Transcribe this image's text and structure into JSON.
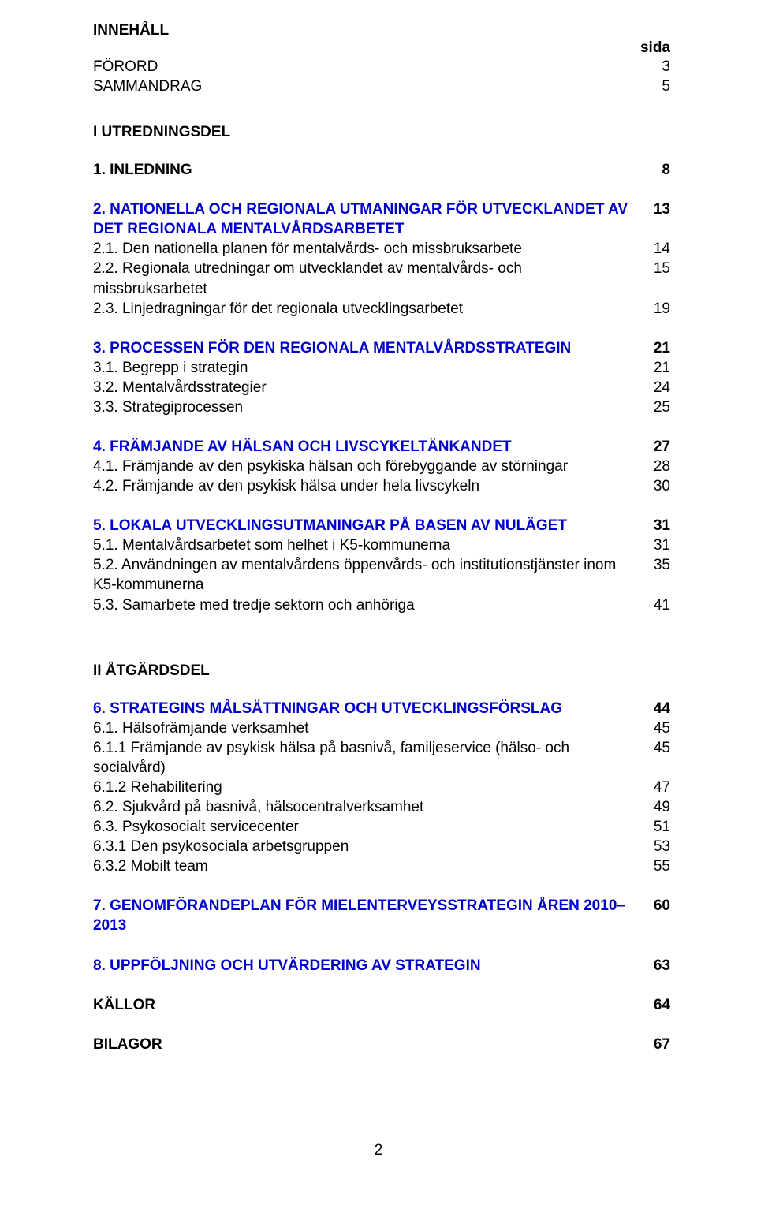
{
  "text_color": "#000000",
  "link_color": "#0000cc",
  "background": "#ffffff",
  "font_size_pt": 14,
  "heading": "INNEHÅLL",
  "sida": "sida",
  "top": [
    {
      "label": "FÖRORD",
      "page": "3"
    },
    {
      "label": "SAMMANDRAG",
      "page": "5"
    }
  ],
  "part1": "I UTREDNINGSDEL",
  "s1": [
    {
      "label": "1. INLEDNING",
      "page": "8",
      "bold": true
    }
  ],
  "s2": [
    {
      "label": "2. NATIONELLA OCH REGIONALA UTMANINGAR FÖR UTVECKLANDET AV DET REGIONALA MENTALVÅRDSARBETET",
      "page": "13",
      "bold": true,
      "blue": true
    },
    {
      "label": "2.1. Den nationella planen för mentalvårds- och missbruksarbete",
      "page": "14"
    },
    {
      "label": "2.2. Regionala utredningar om utvecklandet av mentalvårds- och missbruksarbetet",
      "page": "15"
    },
    {
      "label": "2.3. Linjedragningar för det regionala utvecklingsarbetet",
      "page": "19"
    }
  ],
  "s3": [
    {
      "label": "3. PROCESSEN FÖR DEN REGIONALA MENTALVÅRDSSTRATEGIN",
      "page": "21",
      "bold": true,
      "blue": true
    },
    {
      "label": "3.1. Begrepp i strategin",
      "page": "21"
    },
    {
      "label": "3.2. Mentalvårdsstrategier",
      "page": "24"
    },
    {
      "label": "3.3. Strategiprocessen",
      "page": "25"
    }
  ],
  "s4": [
    {
      "label": "4. FRÄMJANDE AV HÄLSAN OCH LIVSCYKELTÄNKANDET",
      "page": "27",
      "bold": true,
      "blue": true
    },
    {
      "label": "4.1. Främjande av den psykiska hälsan och förebyggande av störningar",
      "page": "28"
    },
    {
      "label": "4.2. Främjande av den psykisk hälsa under hela livscykeln",
      "page": "30"
    }
  ],
  "s5": [
    {
      "label": "5. LOKALA UTVECKLINGSUTMANINGAR PÅ BASEN AV NULÄGET",
      "page": "31",
      "bold": true,
      "blue": true
    },
    {
      "label": "5.1. Mentalvårdsarbetet som helhet i K5-kommunerna",
      "page": "31"
    },
    {
      "label": "5.2. Användningen av mentalvårdens öppenvårds- och institutionstjänster inom K5-kommunerna",
      "page": "35"
    },
    {
      "label": "5.3. Samarbete med tredje sektorn och anhöriga",
      "page": "41"
    }
  ],
  "part2": "II ÅTGÄRDSDEL",
  "s6": [
    {
      "label": "6. STRATEGINS MÅLSÄTTNINGAR OCH UTVECKLINGSFÖRSLAG",
      "page": "44",
      "bold": true,
      "blue": true
    },
    {
      "label": "6.1. Hälsofrämjande verksamhet",
      "page": "45"
    },
    {
      "label": "6.1.1 Främjande av psykisk hälsa på basnivå, familjeservice (hälso- och socialvård)",
      "page": "45"
    },
    {
      "label": "6.1.2 Rehabilitering",
      "page": "47"
    },
    {
      "label": "6.2. Sjukvård på basnivå, hälsocentralverksamhet",
      "page": "49"
    },
    {
      "label": "6.3. Psykosocialt servicecenter",
      "page": "51"
    },
    {
      "label": "6.3.1 Den psykosociala arbetsgruppen",
      "page": "53"
    },
    {
      "label": "6.3.2 Mobilt team",
      "page": "55"
    }
  ],
  "s7": [
    {
      "label": "7. GENOMFÖRANDEPLAN FÖR MIELENTERVEYSSTRATEGIN ÅREN 2010–2013",
      "page": "60",
      "bold": true,
      "blue": true
    }
  ],
  "s8": [
    {
      "label": "8. UPPFÖLJNING OCH UTVÄRDERING AV STRATEGIN",
      "page": "63",
      "bold": true,
      "blue": true
    }
  ],
  "tail": [
    {
      "label": "KÄLLOR",
      "page": "64",
      "bold": true
    },
    {
      "label": "BILAGOR",
      "page": "67",
      "bold": true
    }
  ],
  "page_number": "2"
}
